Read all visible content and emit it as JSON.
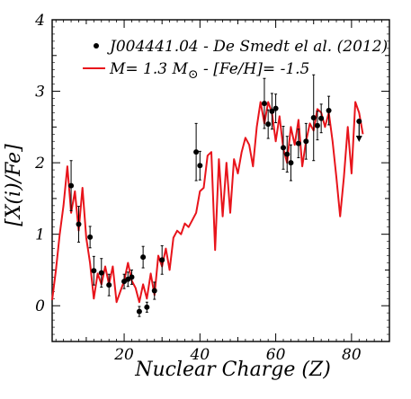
{
  "chart_data": {
    "type": "line",
    "title": "",
    "xlabel": "Nuclear Charge (Z)",
    "ylabel": "[X(i)/Fe]",
    "xlim": [
      1,
      90
    ],
    "ylim": [
      -0.5,
      4
    ],
    "x_ticks": [
      20,
      40,
      60,
      80
    ],
    "y_ticks": [
      0,
      1,
      2,
      3,
      4
    ],
    "x_tick_labels": [
      "20",
      "40",
      "60",
      "80"
    ],
    "y_tick_labels": [
      "0",
      "1",
      "2",
      "3",
      "4"
    ],
    "grid": false,
    "legend_position": "top-right",
    "legend": [
      {
        "label_a": "J004441.04 - De Smedt el al. (2012)",
        "kind": "points",
        "color": "#000000"
      },
      {
        "label_prefix": "M= 1.3 M",
        "label_suffix": " - [Fe/H]= -1.5",
        "symbol": "⊙",
        "kind": "line",
        "color": "#e8141b"
      }
    ],
    "series": [
      {
        "name": "M= 1.3 M⊙ - [Fe/H]= -1.5",
        "style": "line",
        "color": "#e8141b",
        "x": [
          1,
          2,
          3,
          4,
          5,
          6,
          7,
          8,
          9,
          10,
          11,
          12,
          13,
          14,
          15,
          16,
          17,
          18,
          19,
          20,
          21,
          22,
          23,
          24,
          25,
          26,
          27,
          28,
          29,
          30,
          31,
          32,
          33,
          34,
          35,
          36,
          37,
          38,
          39,
          40,
          41,
          42,
          43,
          44,
          45,
          46,
          47,
          48,
          49,
          50,
          51,
          52,
          53,
          54,
          55,
          56,
          57,
          58,
          59,
          60,
          61,
          62,
          63,
          64,
          65,
          66,
          67,
          68,
          69,
          70,
          71,
          72,
          73,
          74,
          75,
          76,
          77,
          78,
          79,
          80,
          81,
          82,
          83
        ],
        "y": [
          0.08,
          0.5,
          1.0,
          1.4,
          1.95,
          1.3,
          1.6,
          1.05,
          1.65,
          0.95,
          0.6,
          0.1,
          0.45,
          0.3,
          0.55,
          0.3,
          0.55,
          0.05,
          0.2,
          0.35,
          0.6,
          0.35,
          0.25,
          0.05,
          0.3,
          0.1,
          0.45,
          0.15,
          0.7,
          0.55,
          0.8,
          0.5,
          0.95,
          1.05,
          1.0,
          1.15,
          1.1,
          1.2,
          1.3,
          1.6,
          1.65,
          2.1,
          2.15,
          0.78,
          2.05,
          1.25,
          2.0,
          1.3,
          2.05,
          1.85,
          2.15,
          2.35,
          2.25,
          1.95,
          2.5,
          2.85,
          2.55,
          2.85,
          2.7,
          2.3,
          2.65,
          2.2,
          2.0,
          2.5,
          2.25,
          2.6,
          1.95,
          2.3,
          2.55,
          2.45,
          2.75,
          2.7,
          2.5,
          2.7,
          2.3,
          1.8,
          1.25,
          1.8,
          2.5,
          1.85,
          2.85,
          2.7,
          2.4
        ]
      },
      {
        "name": "J004441.04 - De Smedt el al. (2012)",
        "style": "points",
        "color": "#000000",
        "points": [
          {
            "x": 6,
            "y": 1.68,
            "err": 0.35
          },
          {
            "x": 8,
            "y": 1.14,
            "err": 0.25
          },
          {
            "x": 11,
            "y": 0.96,
            "err": 0.15
          },
          {
            "x": 12,
            "y": 0.49,
            "err": 0.2
          },
          {
            "x": 14,
            "y": 0.46,
            "err": 0.2
          },
          {
            "x": 16,
            "y": 0.29,
            "err": 0.15
          },
          {
            "x": 20,
            "y": 0.34,
            "err": 0.1
          },
          {
            "x": 21,
            "y": 0.37,
            "err": 0.1
          },
          {
            "x": 22,
            "y": 0.4,
            "err": 0.1
          },
          {
            "x": 24,
            "y": -0.08,
            "err": 0.07
          },
          {
            "x": 25,
            "y": 0.68,
            "err": 0.15
          },
          {
            "x": 26,
            "y": -0.02,
            "err": 0.07
          },
          {
            "x": 28,
            "y": 0.21,
            "err": 0.12
          },
          {
            "x": 30,
            "y": 0.64,
            "err": 0.2
          },
          {
            "x": 39,
            "y": 2.15,
            "err": 0.4
          },
          {
            "x": 40,
            "y": 1.96,
            "err": 0.2
          },
          {
            "x": 57,
            "y": 2.83,
            "err": 0.35
          },
          {
            "x": 58,
            "y": 2.54,
            "err": 0.2
          },
          {
            "x": 59,
            "y": 2.72,
            "err": 0.25
          },
          {
            "x": 60,
            "y": 2.76,
            "err": 0.2
          },
          {
            "x": 62,
            "y": 2.21,
            "err": 0.3
          },
          {
            "x": 63,
            "y": 2.12,
            "err": 0.25
          },
          {
            "x": 64,
            "y": 2.0,
            "err": 0.25
          },
          {
            "x": 66,
            "y": 2.27,
            "err": 0.2
          },
          {
            "x": 68,
            "y": 2.3,
            "err": 0.25
          },
          {
            "x": 70,
            "y": 2.63,
            "err": 0.6
          },
          {
            "x": 71,
            "y": 2.52,
            "err": 0.2
          },
          {
            "x": 72,
            "y": 2.62,
            "err": 0.2
          },
          {
            "x": 74,
            "y": 2.73,
            "err": 0.2
          },
          {
            "x": 82,
            "y": 2.58,
            "err": 0.0,
            "upper_limit": true
          }
        ]
      }
    ]
  }
}
